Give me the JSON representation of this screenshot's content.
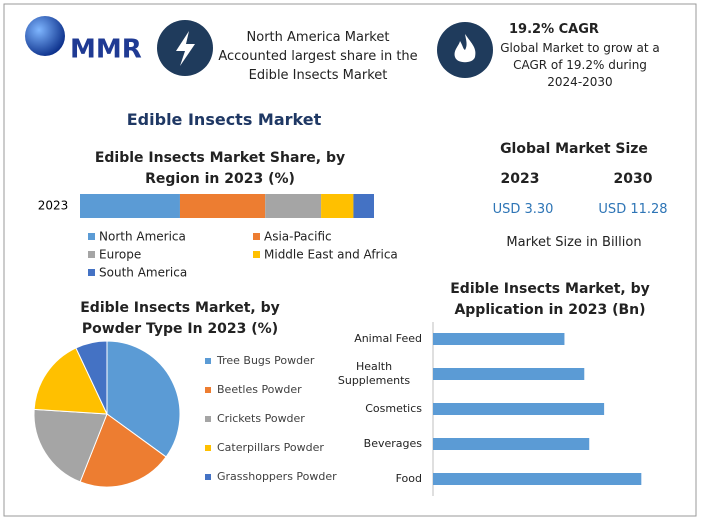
{
  "header": {
    "logo": "MMR",
    "highlight": "North America Market Accounted largest share in the Edible Insects Market",
    "cagr_title": "19.2% CAGR",
    "cagr_text": "Global Market to grow at a CAGR of 19.2% during 2024-2030"
  },
  "title": "Edible Insects Market",
  "market_size": {
    "title": "Global Market Size",
    "years": [
      "2023",
      "2030"
    ],
    "values": [
      "USD 3.30",
      "USD 11.28"
    ],
    "note": "Market Size in Billion"
  },
  "chart_data": [
    {
      "type": "stacked_bar",
      "title": "Edible Insects Market Share, by Region in 2023 (%)",
      "categories": [
        "2023"
      ],
      "series": [
        {
          "name": "North America",
          "color": "#5b9bd5",
          "values": [
            34
          ]
        },
        {
          "name": "Asia-Pacific",
          "color": "#ed7d31",
          "values": [
            29
          ]
        },
        {
          "name": "Europe",
          "color": "#a5a5a5",
          "values": [
            19
          ]
        },
        {
          "name": "Middle East and Africa",
          "color": "#ffc000",
          "values": [
            11
          ]
        },
        {
          "name": "South America",
          "color": "#4472c4",
          "values": [
            7
          ]
        }
      ]
    },
    {
      "type": "pie",
      "title": "Edible Insects Market, by Powder Type In 2023 (%)",
      "categories": [
        "Tree Bugs Powder",
        "Beetles Powder",
        "Crickets Powder",
        "Caterpillars Powder",
        "Grasshoppers Powder"
      ],
      "values": [
        35,
        21,
        20,
        17,
        7
      ],
      "colors": [
        "#5b9bd5",
        "#ed7d31",
        "#a5a5a5",
        "#ffc000",
        "#4472c4"
      ]
    },
    {
      "type": "hbar",
      "title": "Edible Insects Market, by Application in 2023 (Bn)",
      "categories": [
        "Animal Feed",
        "Health Supplements",
        "Cosmetics",
        "Beverages",
        "Food"
      ],
      "values": [
        0.53,
        0.61,
        0.69,
        0.63,
        0.84
      ],
      "color": "#5b9bd5"
    }
  ]
}
